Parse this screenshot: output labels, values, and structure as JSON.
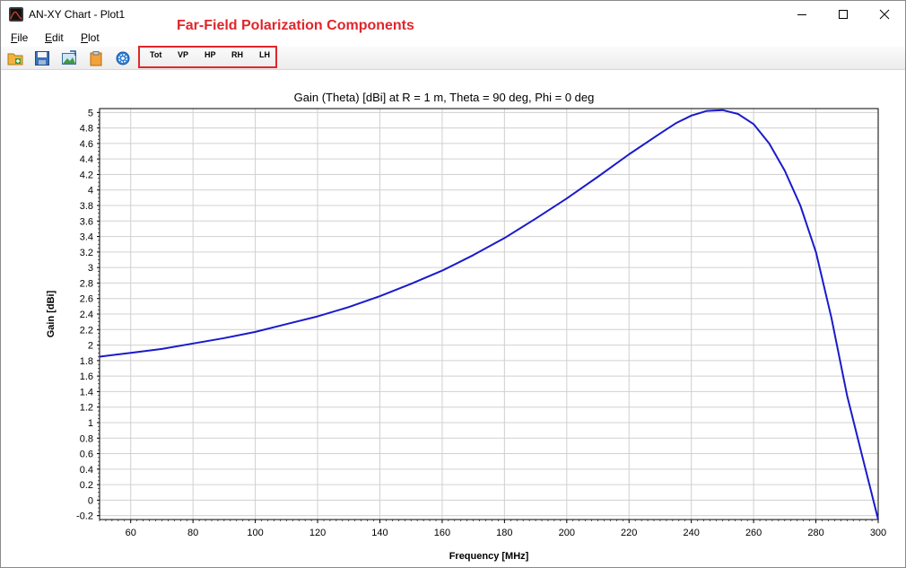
{
  "window": {
    "title": "AN-XY Chart - Plot1",
    "annotation": "Far-Field Polarization Components",
    "annotation_color": "#e0262b"
  },
  "menu": [
    {
      "label_u": "F",
      "label_rest": "ile"
    },
    {
      "label_u": "E",
      "label_rest": "dit"
    },
    {
      "label_u": "P",
      "label_rest": "lot"
    }
  ],
  "toolbar": {
    "icons": [
      "open-folder-icon",
      "save-icon",
      "export-image-icon",
      "clipboard-icon",
      "settings-gear-icon"
    ],
    "polarization_buttons": [
      "Tot",
      "VP",
      "HP",
      "RH",
      "LH"
    ]
  },
  "chart_data": {
    "type": "line",
    "title": "Gain (Theta) [dBi] at R = 1 m, Theta = 90 deg, Phi = 0 deg",
    "xlabel": "Frequency [MHz]",
    "ylabel": "Gain [dBi]",
    "xlim": [
      50,
      300
    ],
    "ylim": [
      -0.25,
      5.05
    ],
    "xticks": [
      60,
      80,
      100,
      120,
      140,
      160,
      180,
      200,
      220,
      240,
      260,
      280,
      300
    ],
    "yticks": [
      "5",
      "4.8",
      "4.6",
      "4.4",
      "4.2",
      "4",
      "3.8",
      "3.6",
      "3.4",
      "3.2",
      "3",
      "2.8",
      "2.6",
      "2.4",
      "2.2",
      "2",
      "1.8",
      "1.6",
      "1.4",
      "1.2",
      "1",
      "0.8",
      "0.6",
      "0.4",
      "0.2",
      "0",
      "-0.2"
    ],
    "grid": true,
    "line_color": "#1a1acc",
    "series": [
      {
        "x": [
          50,
          60,
          70,
          80,
          90,
          100,
          110,
          120,
          130,
          140,
          150,
          160,
          170,
          180,
          190,
          200,
          210,
          220,
          230,
          235,
          240,
          245,
          250,
          255,
          260,
          265,
          270,
          275,
          280,
          285,
          290,
          295,
          300
        ],
        "y": [
          1.85,
          1.9,
          1.95,
          2.02,
          2.09,
          2.17,
          2.27,
          2.37,
          2.49,
          2.63,
          2.79,
          2.96,
          3.16,
          3.38,
          3.63,
          3.89,
          4.17,
          4.46,
          4.73,
          4.86,
          4.96,
          5.02,
          5.03,
          4.98,
          4.85,
          4.6,
          4.25,
          3.8,
          3.2,
          2.35,
          1.35,
          0.55,
          -0.25
        ]
      }
    ]
  }
}
